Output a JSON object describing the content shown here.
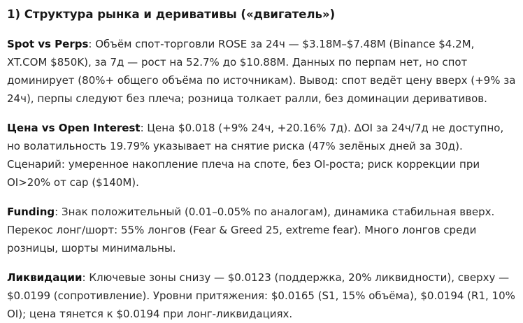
{
  "heading": "1) Структура рынка и деривативы («двигатель»)",
  "sections": [
    {
      "term": "Spot vs Perps",
      "text": ": Объём спот-торговли ROSE за 24ч — $3.18M–$7.48M (Binance $4.2M, XT.COM $850K), за 7д — рост на 52.7% до $10.88M. Данных по перпам нет, но спот доминирует (80%+ общего объёма по источникам). Вывод: спот ведёт цену вверх (+9% за 24ч), перпы следуют без плеча; розница толкает ралли, без доминации деривативов."
    },
    {
      "term": "Цена vs Open Interest",
      "text": ": Цена $0.018 (+9% 24ч, +20.16% 7д). ΔOI за 24ч/7д не доступно, но волатильность 19.79% указывает на снятие риска (47% зелёных дней за 30д). Сценарий: умеренное накопление плеча на споте, без OI-роста; риск коррекции при OI>20% от cap ($140M)."
    },
    {
      "term": "Funding",
      "text": ": Знак положительный (0.01–0.05% по аналогам), динамика стабильная вверх. Перекос лонг/шорт: 55% лонгов (Fear & Greed 25, extreme fear). Много лонгов среди розницы, шорты минимальны."
    },
    {
      "term": "Ликвидации",
      "text": ": Ключевые зоны снизу — $0.0123 (поддержка, 20% ликвидности), сверху — $0.0199 (сопротивление). Уровни притяжения: $0.0165 (S1, 15% объёма), $0.0194 (R1, 10% OI); цена тянется к $0.0194 при лонг-ликвидациях."
    }
  ]
}
